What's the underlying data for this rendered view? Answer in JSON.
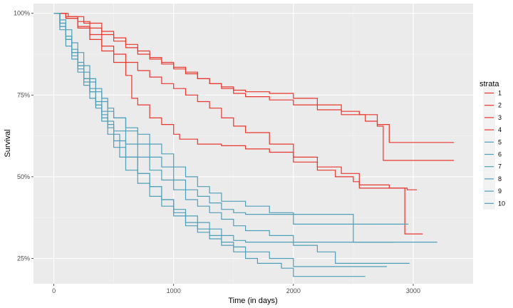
{
  "chart_data": {
    "type": "line",
    "step": true,
    "xlabel": "Time (in days)",
    "ylabel": "Survival",
    "xlim": [
      -170,
      3500
    ],
    "ylim": [
      0.1725,
      1.03
    ],
    "x_ticks": [
      0,
      1000,
      2000,
      3000
    ],
    "y_ticks": [
      0.25,
      0.5,
      0.75,
      1.0
    ],
    "x_tick_labels": [
      "0",
      "1000",
      "2000",
      "3000"
    ],
    "y_tick_labels": [
      "25%",
      "50%",
      "75%",
      "100%"
    ],
    "grid": true,
    "panel_background": "#ebebeb",
    "legend": {
      "title": "strata",
      "position": "right"
    },
    "series": [
      {
        "name": "1",
        "color": "#e8372c",
        "points": [
          [
            0,
            1.0
          ],
          [
            100,
            0.99
          ],
          [
            200,
            0.975
          ],
          [
            300,
            0.955
          ],
          [
            400,
            0.935
          ],
          [
            500,
            0.915
          ],
          [
            600,
            0.895
          ],
          [
            700,
            0.875
          ],
          [
            800,
            0.86
          ],
          [
            900,
            0.845
          ],
          [
            1000,
            0.83
          ],
          [
            1100,
            0.815
          ],
          [
            1200,
            0.8
          ],
          [
            1300,
            0.785
          ],
          [
            1400,
            0.775
          ],
          [
            1500,
            0.765
          ],
          [
            1600,
            0.76
          ],
          [
            1800,
            0.755
          ],
          [
            2000,
            0.74
          ],
          [
            2200,
            0.72
          ],
          [
            2400,
            0.7
          ],
          [
            2550,
            0.69
          ],
          [
            2700,
            0.66
          ],
          [
            2800,
            0.605
          ],
          [
            3340,
            0.605
          ]
        ]
      },
      {
        "name": "2",
        "color": "#e8372c",
        "points": [
          [
            0,
            1.0
          ],
          [
            120,
            0.99
          ],
          [
            250,
            0.97
          ],
          [
            400,
            0.945
          ],
          [
            500,
            0.925
          ],
          [
            600,
            0.905
          ],
          [
            700,
            0.885
          ],
          [
            800,
            0.865
          ],
          [
            900,
            0.85
          ],
          [
            1000,
            0.835
          ],
          [
            1100,
            0.82
          ],
          [
            1200,
            0.8
          ],
          [
            1300,
            0.785
          ],
          [
            1400,
            0.77
          ],
          [
            1500,
            0.755
          ],
          [
            1600,
            0.745
          ],
          [
            1800,
            0.735
          ],
          [
            2000,
            0.72
          ],
          [
            2200,
            0.705
          ],
          [
            2400,
            0.69
          ],
          [
            2600,
            0.67
          ],
          [
            2700,
            0.655
          ],
          [
            2750,
            0.55
          ],
          [
            3340,
            0.55
          ]
        ]
      },
      {
        "name": "3",
        "color": "#e8372c",
        "points": [
          [
            0,
            1.0
          ],
          [
            100,
            0.985
          ],
          [
            200,
            0.96
          ],
          [
            300,
            0.935
          ],
          [
            400,
            0.9
          ],
          [
            500,
            0.875
          ],
          [
            600,
            0.85
          ],
          [
            700,
            0.825
          ],
          [
            800,
            0.805
          ],
          [
            900,
            0.785
          ],
          [
            1000,
            0.77
          ],
          [
            1100,
            0.75
          ],
          [
            1200,
            0.73
          ],
          [
            1300,
            0.71
          ],
          [
            1400,
            0.68
          ],
          [
            1500,
            0.655
          ],
          [
            1600,
            0.635
          ],
          [
            1800,
            0.6
          ],
          [
            2000,
            0.56
          ],
          [
            2200,
            0.53
          ],
          [
            2400,
            0.51
          ],
          [
            2550,
            0.475
          ],
          [
            2800,
            0.465
          ],
          [
            2930,
            0.325
          ],
          [
            3080,
            0.325
          ]
        ]
      },
      {
        "name": "4",
        "color": "#e8372c",
        "points": [
          [
            0,
            1.0
          ],
          [
            100,
            0.985
          ],
          [
            200,
            0.955
          ],
          [
            300,
            0.92
          ],
          [
            400,
            0.885
          ],
          [
            500,
            0.85
          ],
          [
            600,
            0.81
          ],
          [
            650,
            0.74
          ],
          [
            700,
            0.72
          ],
          [
            800,
            0.68
          ],
          [
            900,
            0.66
          ],
          [
            1000,
            0.63
          ],
          [
            1050,
            0.615
          ],
          [
            1200,
            0.6
          ],
          [
            1400,
            0.595
          ],
          [
            1600,
            0.585
          ],
          [
            1800,
            0.575
          ],
          [
            2000,
            0.545
          ],
          [
            2200,
            0.52
          ],
          [
            2350,
            0.5
          ],
          [
            2500,
            0.485
          ],
          [
            2550,
            0.465
          ],
          [
            2950,
            0.46
          ],
          [
            3030,
            0.46
          ]
        ]
      },
      {
        "name": "5",
        "color": "#4f9fb9",
        "points": [
          [
            0,
            1.0
          ],
          [
            50,
            0.97
          ],
          [
            100,
            0.93
          ],
          [
            150,
            0.89
          ],
          [
            200,
            0.85
          ],
          [
            250,
            0.82
          ],
          [
            300,
            0.79
          ],
          [
            350,
            0.76
          ],
          [
            400,
            0.73
          ],
          [
            450,
            0.7
          ],
          [
            500,
            0.68
          ],
          [
            600,
            0.65
          ],
          [
            700,
            0.63
          ],
          [
            800,
            0.6
          ],
          [
            900,
            0.57
          ],
          [
            1000,
            0.53
          ],
          [
            1100,
            0.5
          ],
          [
            1200,
            0.47
          ],
          [
            1300,
            0.45
          ],
          [
            1400,
            0.425
          ],
          [
            1600,
            0.41
          ],
          [
            1800,
            0.39
          ],
          [
            2000,
            0.355
          ],
          [
            2900,
            0.355
          ],
          [
            2960,
            0.355
          ]
        ]
      },
      {
        "name": "6",
        "color": "#4f9fb9",
        "points": [
          [
            0,
            1.0
          ],
          [
            50,
            0.96
          ],
          [
            100,
            0.92
          ],
          [
            150,
            0.87
          ],
          [
            200,
            0.83
          ],
          [
            250,
            0.79
          ],
          [
            300,
            0.76
          ],
          [
            350,
            0.72
          ],
          [
            400,
            0.69
          ],
          [
            450,
            0.66
          ],
          [
            500,
            0.63
          ],
          [
            550,
            0.59
          ],
          [
            600,
            0.56
          ],
          [
            700,
            0.51
          ],
          [
            800,
            0.47
          ],
          [
            900,
            0.43
          ],
          [
            1000,
            0.4
          ],
          [
            1100,
            0.38
          ],
          [
            1200,
            0.36
          ],
          [
            1300,
            0.34
          ],
          [
            1400,
            0.32
          ],
          [
            1500,
            0.305
          ],
          [
            1600,
            0.3
          ],
          [
            2000,
            0.3
          ],
          [
            3200,
            0.3
          ]
        ]
      },
      {
        "name": "7",
        "color": "#4f9fb9",
        "points": [
          [
            0,
            1.0
          ],
          [
            50,
            0.98
          ],
          [
            100,
            0.95
          ],
          [
            150,
            0.91
          ],
          [
            200,
            0.88
          ],
          [
            250,
            0.84
          ],
          [
            300,
            0.8
          ],
          [
            350,
            0.77
          ],
          [
            400,
            0.74
          ],
          [
            450,
            0.71
          ],
          [
            500,
            0.68
          ],
          [
            600,
            0.64
          ],
          [
            700,
            0.6
          ],
          [
            800,
            0.56
          ],
          [
            900,
            0.53
          ],
          [
            1000,
            0.49
          ],
          [
            1100,
            0.46
          ],
          [
            1200,
            0.44
          ],
          [
            1300,
            0.42
          ],
          [
            1400,
            0.4
          ],
          [
            1500,
            0.39
          ],
          [
            1600,
            0.385
          ],
          [
            2000,
            0.385
          ],
          [
            2500,
            0.3
          ],
          [
            2840,
            0.3
          ]
        ]
      },
      {
        "name": "8",
        "color": "#4f9fb9",
        "points": [
          [
            0,
            1.0
          ],
          [
            50,
            0.97
          ],
          [
            100,
            0.93
          ],
          [
            150,
            0.88
          ],
          [
            200,
            0.84
          ],
          [
            250,
            0.8
          ],
          [
            300,
            0.77
          ],
          [
            350,
            0.73
          ],
          [
            400,
            0.7
          ],
          [
            450,
            0.67
          ],
          [
            500,
            0.64
          ],
          [
            600,
            0.6
          ],
          [
            700,
            0.56
          ],
          [
            800,
            0.52
          ],
          [
            900,
            0.49
          ],
          [
            1000,
            0.46
          ],
          [
            1100,
            0.43
          ],
          [
            1200,
            0.41
          ],
          [
            1300,
            0.39
          ],
          [
            1400,
            0.37
          ],
          [
            1500,
            0.35
          ],
          [
            1600,
            0.335
          ],
          [
            1800,
            0.32
          ],
          [
            2000,
            0.29
          ],
          [
            2200,
            0.27
          ],
          [
            2350,
            0.235
          ],
          [
            2970,
            0.235
          ]
        ]
      },
      {
        "name": "9",
        "color": "#4f9fb9",
        "points": [
          [
            0,
            1.0
          ],
          [
            50,
            0.96
          ],
          [
            100,
            0.92
          ],
          [
            150,
            0.88
          ],
          [
            200,
            0.84
          ],
          [
            250,
            0.8
          ],
          [
            300,
            0.76
          ],
          [
            350,
            0.72
          ],
          [
            400,
            0.68
          ],
          [
            450,
            0.65
          ],
          [
            500,
            0.61
          ],
          [
            600,
            0.56
          ],
          [
            700,
            0.51
          ],
          [
            800,
            0.47
          ],
          [
            900,
            0.43
          ],
          [
            1000,
            0.39
          ],
          [
            1100,
            0.36
          ],
          [
            1200,
            0.34
          ],
          [
            1300,
            0.32
          ],
          [
            1400,
            0.3
          ],
          [
            1500,
            0.285
          ],
          [
            1600,
            0.27
          ],
          [
            1800,
            0.25
          ],
          [
            2000,
            0.225
          ],
          [
            2780,
            0.225
          ]
        ]
      },
      {
        "name": "10",
        "color": "#4f9fb9",
        "points": [
          [
            0,
            1.0
          ],
          [
            50,
            0.95
          ],
          [
            100,
            0.9
          ],
          [
            150,
            0.86
          ],
          [
            200,
            0.82
          ],
          [
            250,
            0.78
          ],
          [
            300,
            0.74
          ],
          [
            350,
            0.71
          ],
          [
            400,
            0.67
          ],
          [
            450,
            0.63
          ],
          [
            500,
            0.59
          ],
          [
            550,
            0.56
          ],
          [
            600,
            0.52
          ],
          [
            700,
            0.48
          ],
          [
            800,
            0.44
          ],
          [
            900,
            0.41
          ],
          [
            1000,
            0.38
          ],
          [
            1100,
            0.35
          ],
          [
            1200,
            0.33
          ],
          [
            1300,
            0.31
          ],
          [
            1400,
            0.29
          ],
          [
            1500,
            0.27
          ],
          [
            1600,
            0.25
          ],
          [
            1700,
            0.235
          ],
          [
            1900,
            0.22
          ],
          [
            2000,
            0.195
          ],
          [
            2600,
            0.195
          ]
        ]
      }
    ]
  }
}
